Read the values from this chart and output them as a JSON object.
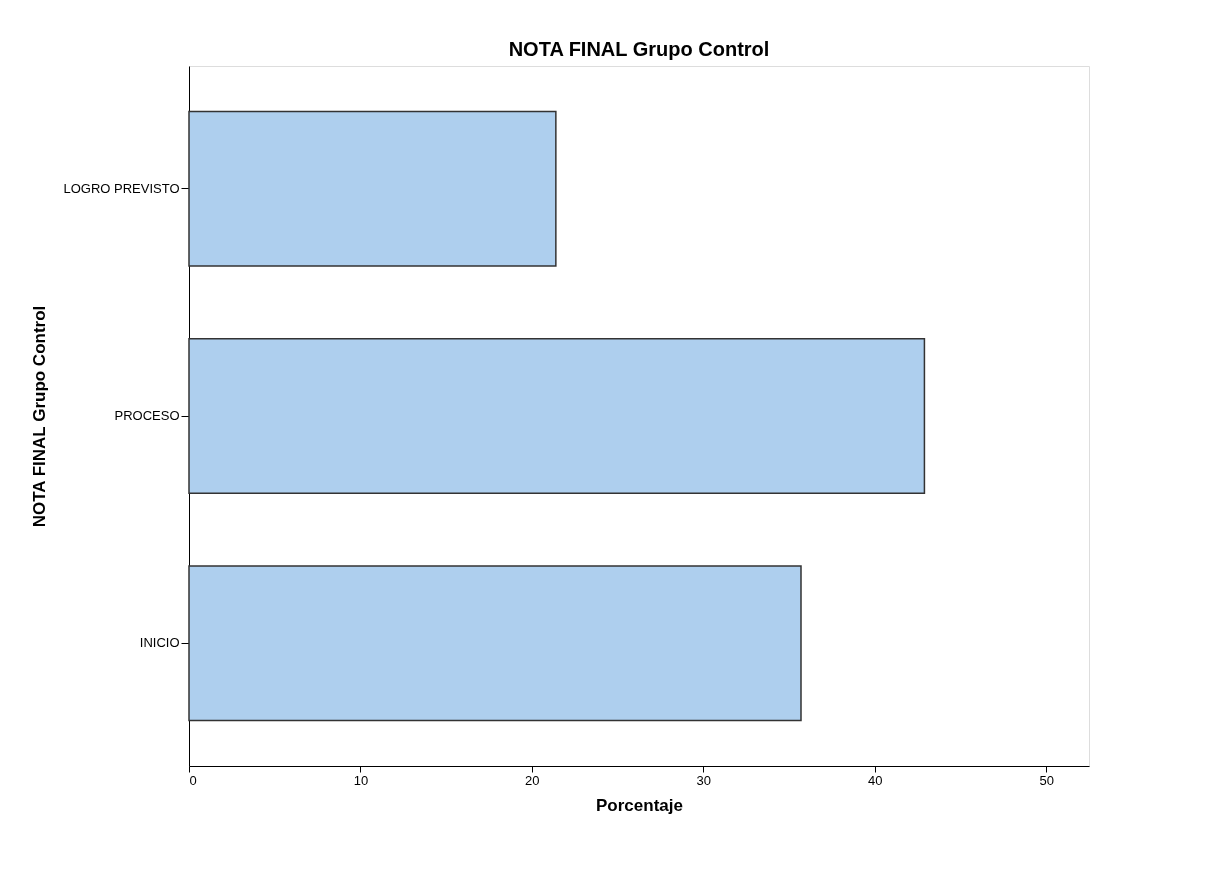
{
  "chart_data": {
    "type": "bar",
    "orientation": "horizontal",
    "title": "NOTA FINAL Grupo Control",
    "xlabel": "Porcentaje",
    "ylabel": "NOTA FINAL Grupo Control",
    "categories": [
      "LOGRO PREVISTO",
      "PROCESO",
      "INICIO"
    ],
    "values": [
      21.4,
      42.9,
      35.7
    ],
    "color": "#aecfee",
    "xlim": [
      0,
      52.5
    ],
    "xticks": [
      0,
      10,
      20,
      30,
      40,
      50
    ],
    "grid": false
  }
}
